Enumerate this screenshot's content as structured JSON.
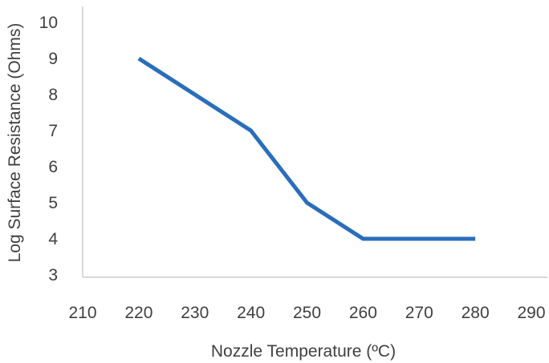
{
  "chart_data": {
    "type": "line",
    "title": "",
    "xlabel": "Nozzle Temperature (ºC)",
    "ylabel": "Log Surface Resistance (Ohms)",
    "xlim": [
      210,
      290
    ],
    "ylim": [
      3,
      10
    ],
    "x_ticks": [
      "210",
      "220",
      "230",
      "240",
      "250",
      "260",
      "270",
      "280",
      "290"
    ],
    "y_ticks": [
      "3",
      "4",
      "5",
      "6",
      "7",
      "8",
      "9",
      "10"
    ],
    "grid": false,
    "legend": "none",
    "series": [
      {
        "x": [
          220,
          240,
          250,
          260,
          270,
          280
        ],
        "values": [
          9,
          7,
          5,
          4,
          4,
          4
        ],
        "color": "#2a6ebb"
      }
    ]
  }
}
